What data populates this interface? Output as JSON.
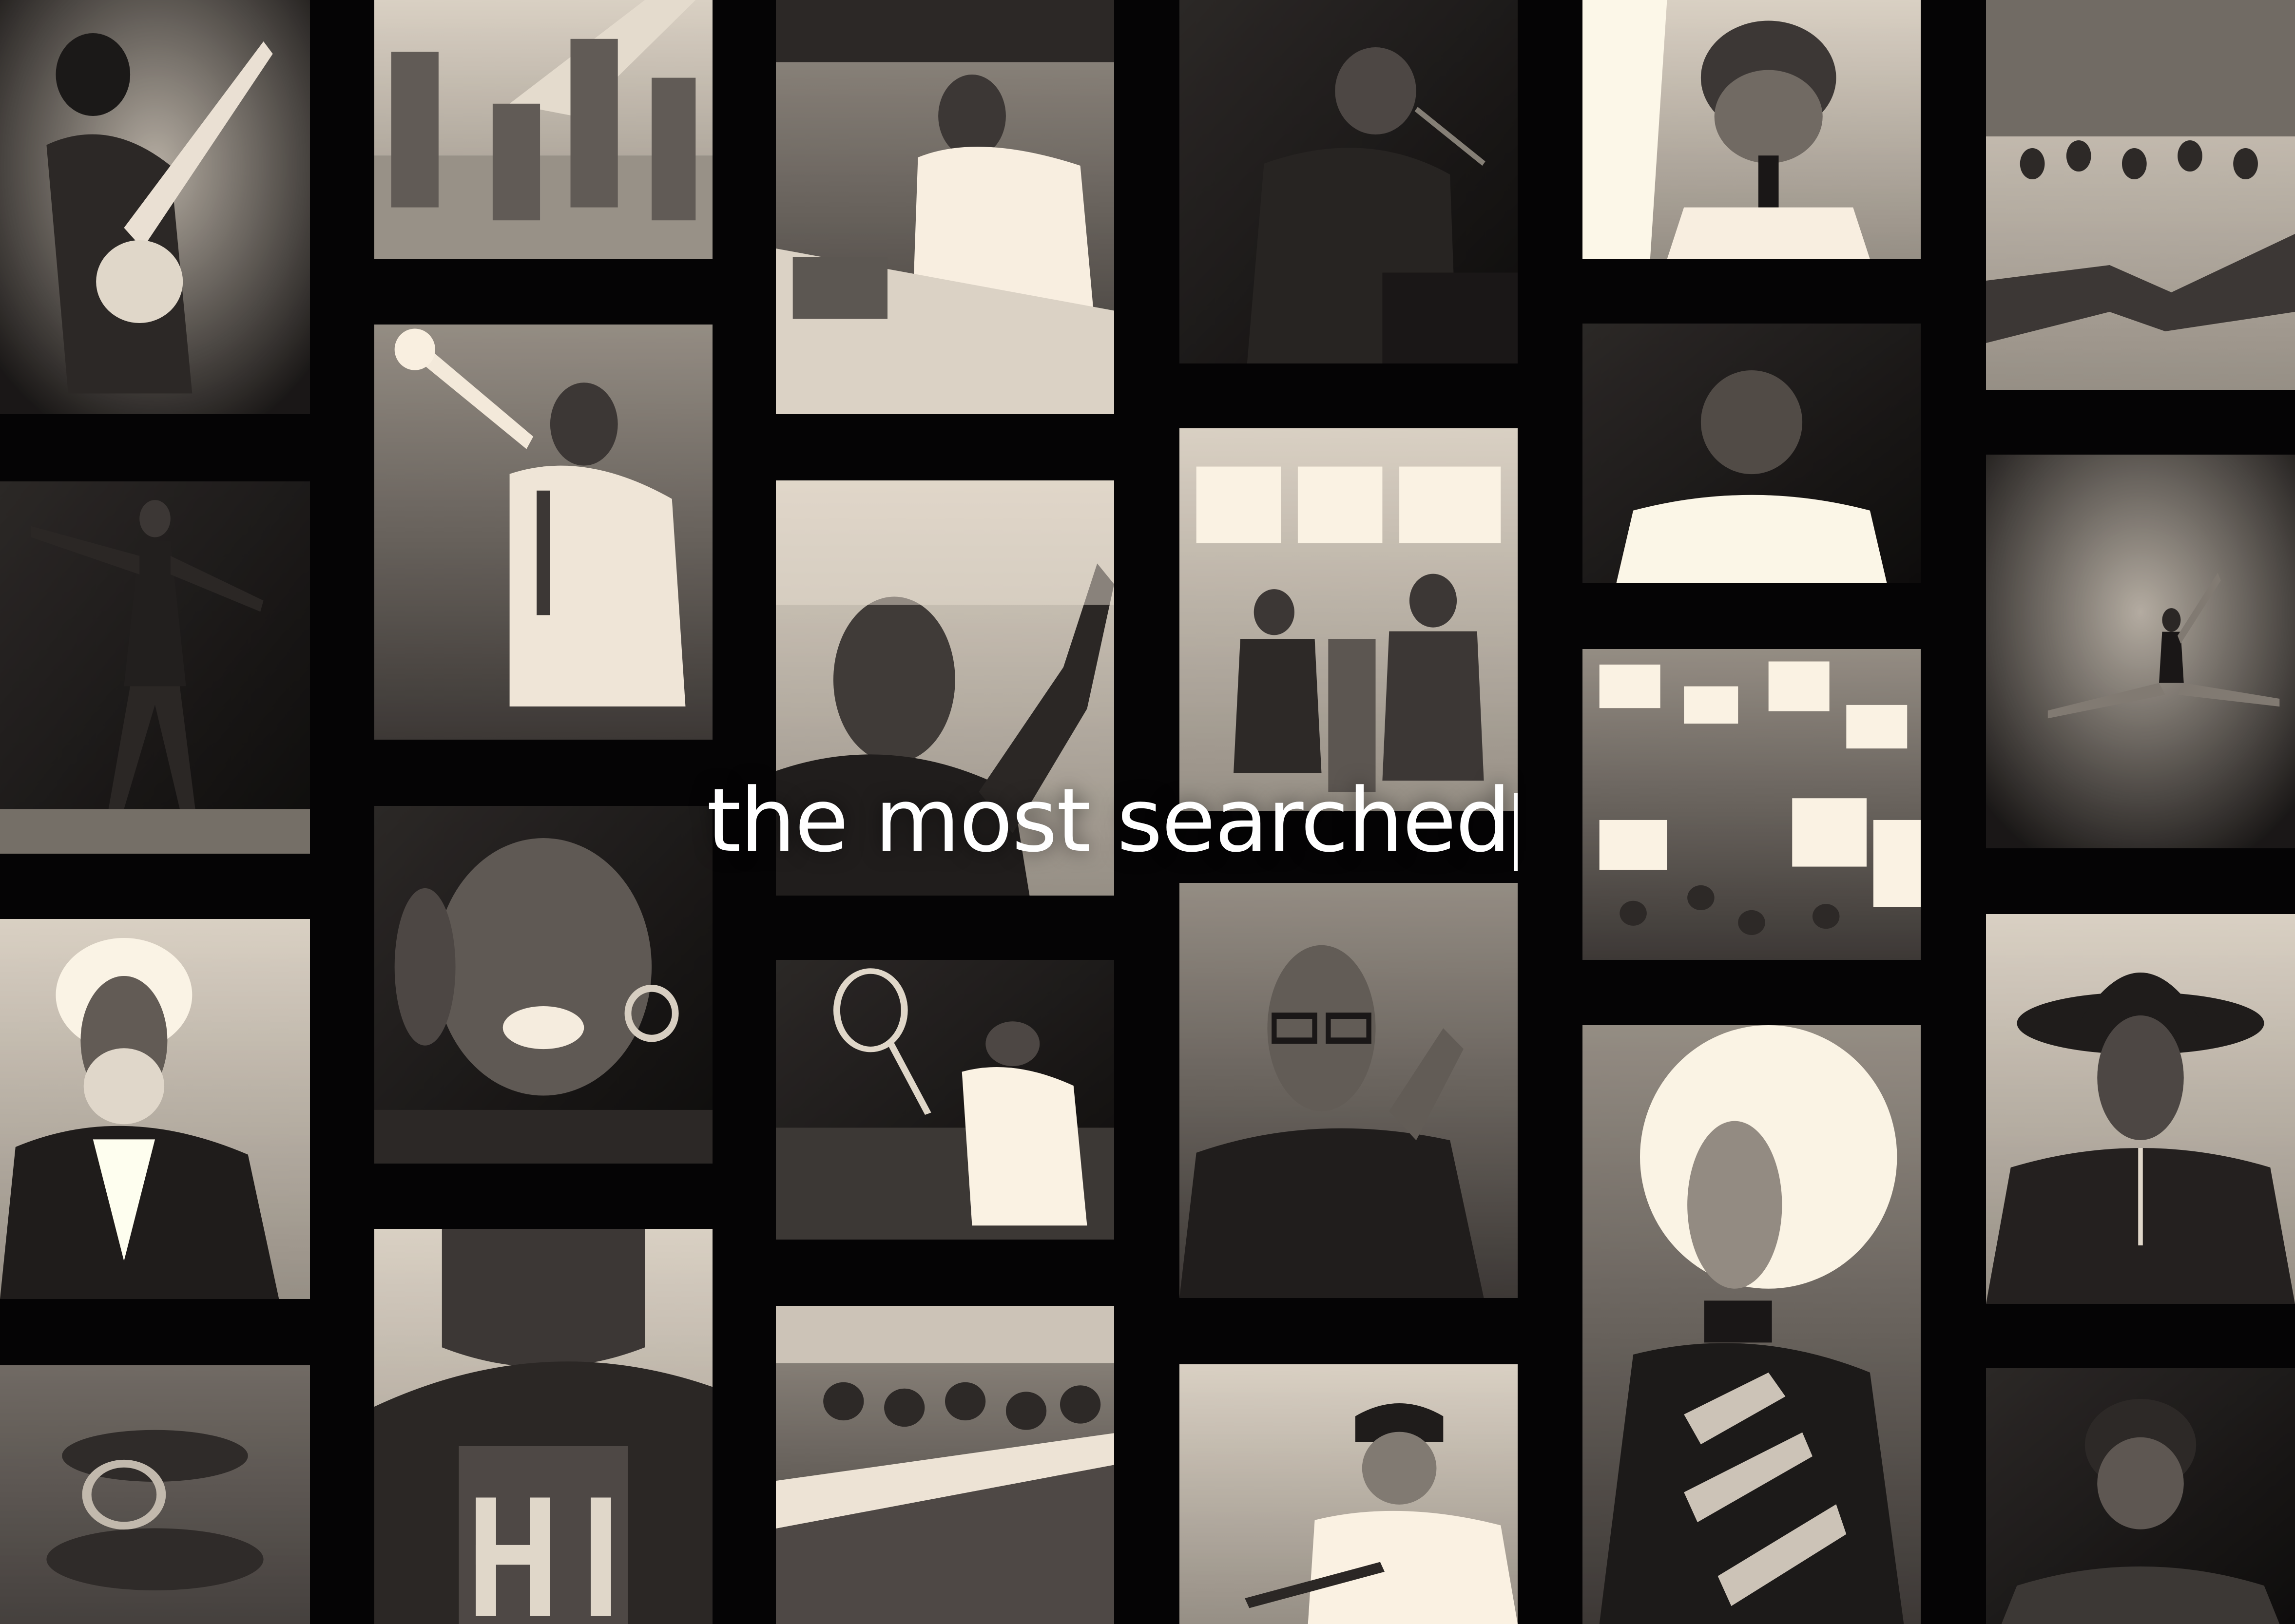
{
  "headline": {
    "text": "the most searched"
  },
  "colors": {
    "background": "#050405",
    "headline": "#ffffff",
    "photo_light": "#bdb4ae",
    "photo_dark": "#1c1718"
  },
  "photos": [
    {
      "icon": "guitarist-performing-photo"
    },
    {
      "icon": "dancer-on-stage-photo"
    },
    {
      "icon": "bearded-man-portrait-photo"
    },
    {
      "icon": "clasped-hands-photo"
    },
    {
      "icon": "airmen-by-plane-photo"
    },
    {
      "icon": "trumpet-player-photo"
    },
    {
      "icon": "singing-woman-photo"
    },
    {
      "icon": "university-jacket-photo"
    },
    {
      "icon": "woman-at-desk-photo"
    },
    {
      "icon": "orator-speaking-photo"
    },
    {
      "icon": "tennis-player-photo"
    },
    {
      "icon": "lunch-counter-crowd-photo"
    },
    {
      "icon": "singer-at-piano-photo"
    },
    {
      "icon": "woman-on-bus-photo"
    },
    {
      "icon": "smiling-man-glasses-photo"
    },
    {
      "icon": "baseball-player-photo"
    },
    {
      "icon": "singer-with-microphone-photo"
    },
    {
      "icon": "athlete-portrait-photo"
    },
    {
      "icon": "march-crowd-signs-photo"
    },
    {
      "icon": "drag-performer-photo"
    },
    {
      "icon": "marchers-holding-hands-photo"
    },
    {
      "icon": "ballet-dancer-leap-photo"
    },
    {
      "icon": "cowboy-hat-portrait-photo"
    },
    {
      "icon": "football-player-photo"
    }
  ]
}
